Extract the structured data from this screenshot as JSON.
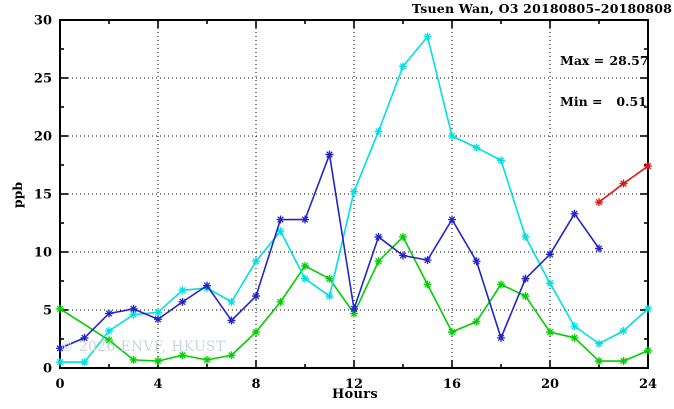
{
  "chart_data": {
    "type": "line",
    "title": "Tsuen Wan, O3 20180805–20180808",
    "xlabel": "Hours",
    "ylabel": "ppb",
    "xlim": [
      0,
      24
    ],
    "ylim": [
      0,
      30
    ],
    "xticks_major": [
      0,
      4,
      8,
      12,
      16,
      20,
      24
    ],
    "xticks_minor": [
      2,
      6,
      10,
      14,
      18,
      22
    ],
    "yticks_major": [
      0,
      5,
      10,
      15,
      20,
      25,
      30
    ],
    "yticks_minor": [
      2.5,
      7.5,
      12.5,
      17.5,
      22.5,
      27.5
    ],
    "grid": "dotted black lines at major ticks, full frame border, ticks mirrored on all four sides",
    "legend_position": "top-right inside plot",
    "legend": {
      "rows": [
        {
          "label": "Max = ",
          "value": "28.57"
        },
        {
          "label": "Min = ",
          "value": "0.51"
        }
      ]
    },
    "watermark": "© 2026 ENVF, HKUST",
    "colors": {
      "axis": "#000000",
      "background": "#ffffff",
      "watermark": "#cdd3dc"
    },
    "marker": "asterisk",
    "series": [
      {
        "name": "day-green",
        "color": "#00d000",
        "x": [
          0,
          2,
          3,
          4,
          5,
          6,
          7,
          8,
          9,
          10,
          11,
          12,
          13,
          14,
          15,
          16,
          17,
          18,
          19,
          20,
          21,
          22,
          23,
          24
        ],
        "y": [
          5.1,
          2.4,
          0.7,
          0.6,
          1.1,
          0.7,
          1.1,
          3.1,
          5.7,
          8.8,
          7.7,
          4.7,
          9.2,
          11.3,
          7.2,
          3.1,
          4.0,
          7.2,
          6.2,
          3.1,
          2.6,
          0.6,
          0.6,
          1.5
        ]
      },
      {
        "name": "day-cyan",
        "color": "#00e0e0",
        "x": [
          0,
          1,
          2,
          3,
          4,
          5,
          6,
          7,
          8,
          9,
          10,
          11,
          12,
          13,
          14,
          15,
          16,
          17,
          18,
          19,
          20,
          21,
          22,
          23,
          24
        ],
        "y": [
          0.51,
          0.51,
          3.2,
          4.6,
          4.8,
          6.7,
          6.9,
          5.7,
          9.2,
          11.8,
          7.7,
          6.2,
          15.2,
          20.4,
          26.0,
          28.57,
          20.0,
          19.0,
          17.9,
          11.3,
          7.3,
          3.6,
          2.1,
          3.2,
          5.1
        ]
      },
      {
        "name": "day-blue",
        "color": "#2424cc",
        "x": [
          0,
          1,
          2,
          3,
          4,
          5,
          6,
          7,
          8,
          9,
          10,
          11,
          12,
          13,
          14,
          15,
          16,
          17,
          18,
          19,
          20,
          21,
          22
        ],
        "y": [
          1.7,
          2.6,
          4.7,
          5.1,
          4.2,
          5.7,
          7.1,
          4.1,
          6.2,
          12.8,
          12.8,
          18.4,
          5.1,
          11.3,
          9.7,
          9.3,
          12.8,
          9.2,
          2.6,
          7.7,
          9.8,
          13.3,
          10.3
        ]
      },
      {
        "name": "day-red",
        "color": "#e01515",
        "x": [
          22,
          23,
          24
        ],
        "y": [
          14.3,
          15.9,
          17.4
        ]
      }
    ]
  }
}
